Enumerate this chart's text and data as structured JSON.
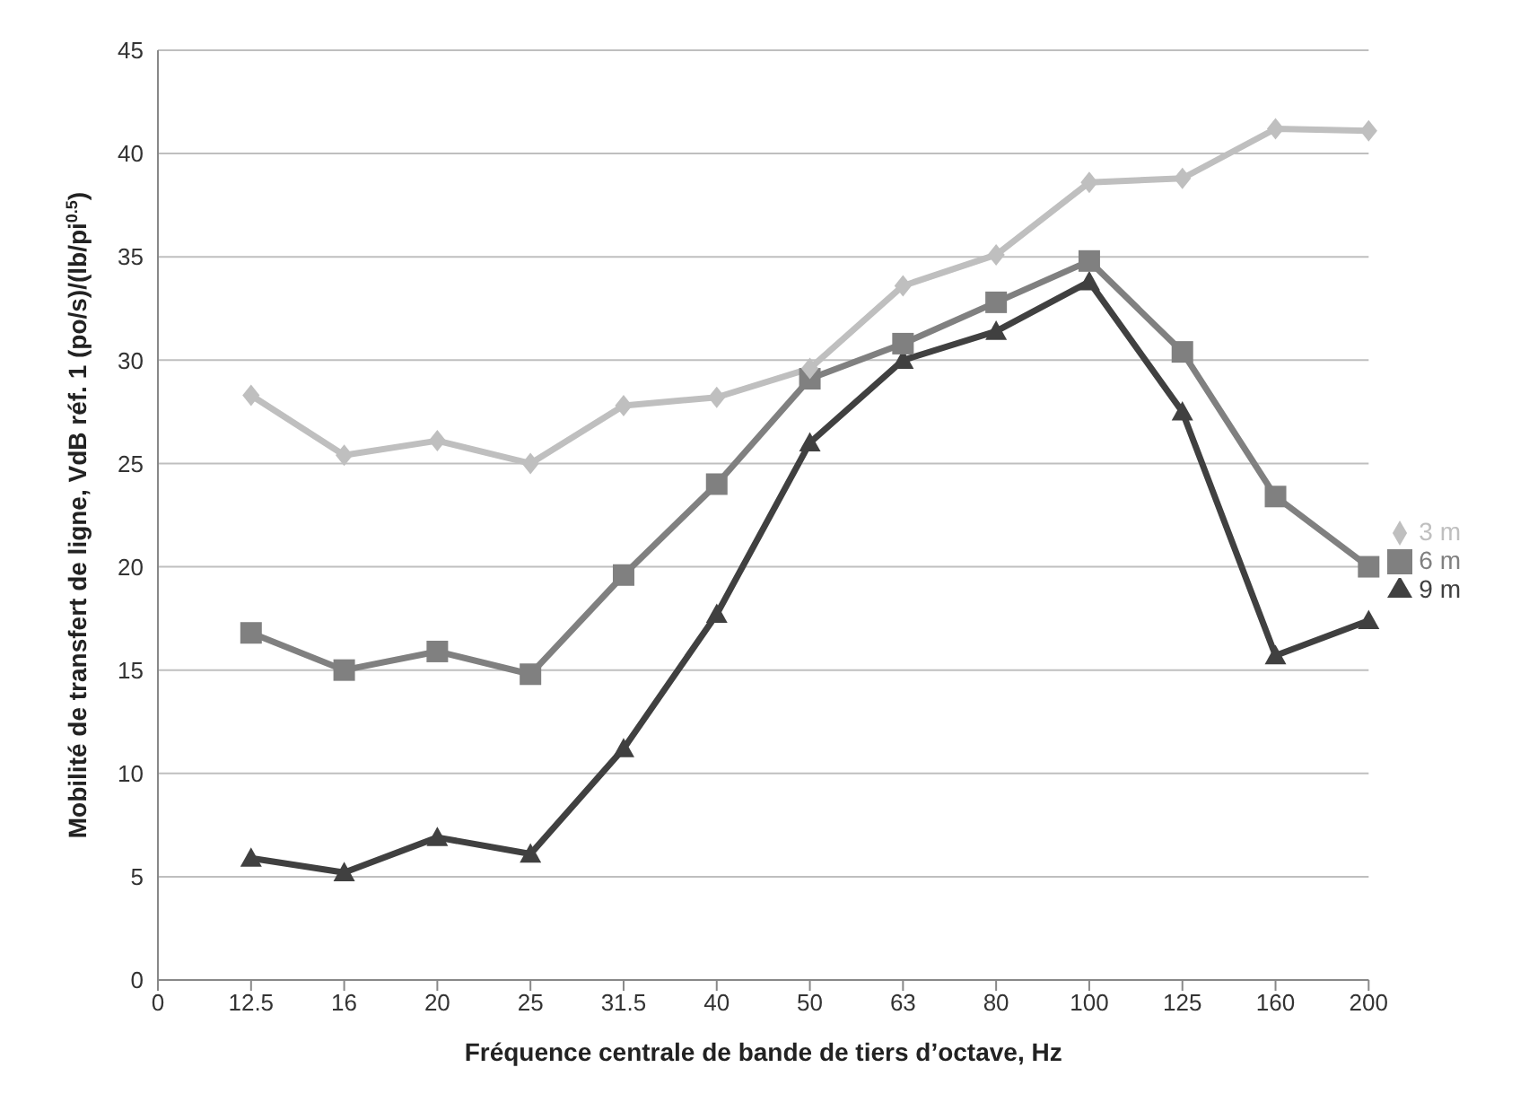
{
  "chart_data": {
    "type": "line",
    "xlabel": "Fréquence centrale de bande de tiers d’octave, Hz",
    "ylabel": "Mobilité de transfert de ligne, VdB réf. 1 (po/s)/(lb/pi$^{0.5}$)",
    "categories": [
      "0",
      "12.5",
      "16",
      "20",
      "25",
      "31.5",
      "40",
      "50",
      "63",
      "80",
      "100",
      "125",
      "160",
      "200"
    ],
    "series": [
      {
        "name": "3 m",
        "color": "#bfbfbf",
        "marker": "diamond",
        "values": [
          null,
          28.3,
          25.4,
          26.1,
          25.0,
          27.8,
          28.2,
          29.6,
          33.6,
          35.1,
          38.6,
          38.8,
          41.2,
          41.1
        ]
      },
      {
        "name": "6 m",
        "color": "#808080",
        "marker": "square",
        "values": [
          null,
          16.8,
          15.0,
          15.9,
          14.8,
          19.6,
          24.0,
          29.1,
          30.8,
          32.8,
          34.8,
          30.4,
          23.4,
          20.0
        ]
      },
      {
        "name": "9 m",
        "color": "#404040",
        "marker": "triangle",
        "values": [
          null,
          5.9,
          5.2,
          6.9,
          6.1,
          11.2,
          17.7,
          26.0,
          30.0,
          31.4,
          33.8,
          27.5,
          15.7,
          17.4
        ]
      }
    ],
    "ylim": [
      0,
      45
    ],
    "yticks": [
      0,
      5,
      10,
      15,
      20,
      25,
      30,
      35,
      40,
      45
    ],
    "grid": "y",
    "legend": "right",
    "line_style": "solid"
  }
}
